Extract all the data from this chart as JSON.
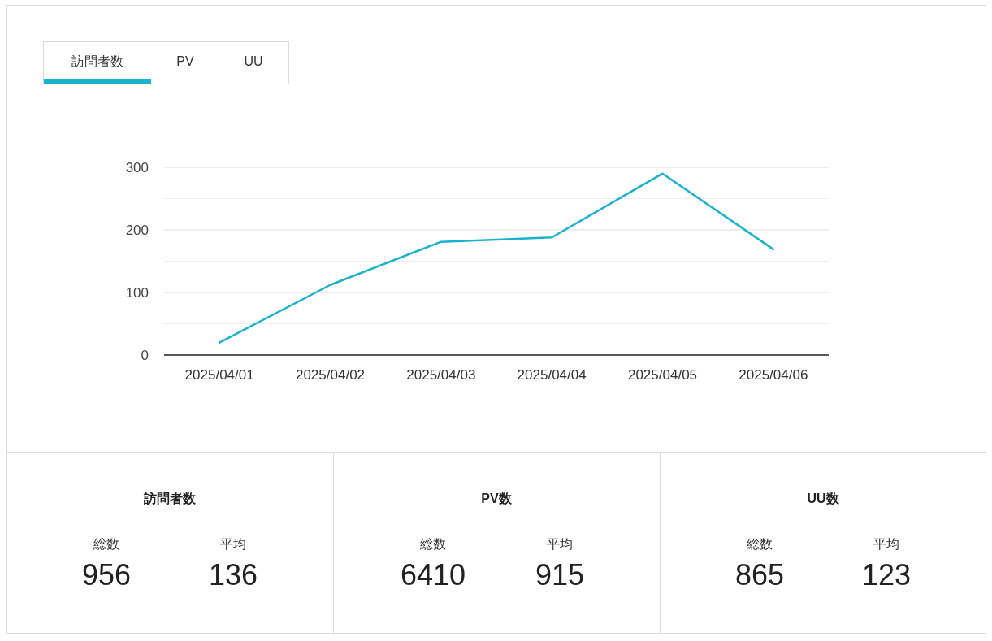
{
  "chart_data": [
    {
      "type": "line",
      "annotations": [
        "訪問者数",
        "PV",
        "UU"
      ],
      "categories": [
        "2025/04/01",
        "2025/04/02",
        "2025/04/03",
        "2025/04/04",
        "2025/04/05",
        "2025/04/06"
      ],
      "series": [
        {
          "color": "#1ab3cf",
          "values": [
            20,
            112,
            181,
            188,
            290,
            169
          ]
        }
      ],
      "ylim": [
        0,
        300
      ],
      "yticks": [
        0,
        {
          "value": 50,
          "label": null
        },
        100,
        {
          "value": 150,
          "label": null
        },
        200,
        {
          "value": 250,
          "label": null
        },
        300
      ],
      "grid": "y"
    },
    {
      "type": "other",
      "title": "訪問者数",
      "categories": [
        "総数",
        "平均"
      ],
      "values": [
        956,
        136
      ],
      "data_labels": true
    },
    {
      "type": "other",
      "title": "PV数",
      "categories": [
        "総数",
        "平均"
      ],
      "values": [
        6410,
        915
      ],
      "data_labels": true
    },
    {
      "type": "other",
      "title": "UU数",
      "categories": [
        "総数",
        "平均"
      ],
      "values": [
        865,
        123
      ],
      "data_labels": true
    }
  ]
}
